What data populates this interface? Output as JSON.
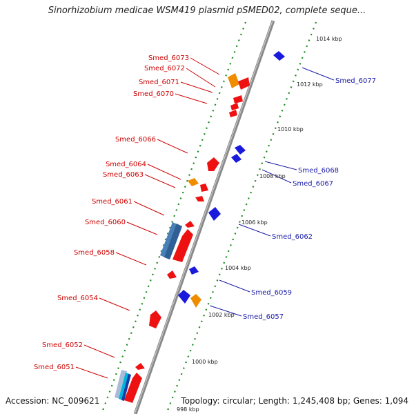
{
  "title": "Sinorhizobium medicae WSM419 plasmid pSMED02, complete seque...",
  "footer": {
    "accession": "Accession: NC_009621",
    "summary": "Topology: circular; Length: 1,245,408 bp; Genes: 1,094"
  },
  "scale_labels": [
    "1014 kbp",
    "1012 kbp",
    "1010 kbp",
    "1008 kbp",
    "1006 kbp",
    "1004 kbp",
    "1002 kbp",
    "1000 kbp",
    "998 kbp"
  ],
  "genes_left": [
    "Smed_6073",
    "Smed_6072",
    "Smed_6071",
    "Smed_6070",
    "Smed_6066",
    "Smed_6064",
    "Smed_6063",
    "Smed_6061",
    "Smed_6060",
    "Smed_6058",
    "Smed_6054",
    "Smed_6052",
    "Smed_6051"
  ],
  "genes_right": [
    "Smed_6077",
    "Smed_6068",
    "Smed_6067",
    "Smed_6062",
    "Smed_6059",
    "Smed_6057"
  ],
  "colors": {
    "forward": "#ee1111",
    "reverse": "#1a1add",
    "orange": "#f08c00",
    "steel": "#4a80b8",
    "backbone": "#8a8a8a",
    "tick": "#228b22"
  }
}
